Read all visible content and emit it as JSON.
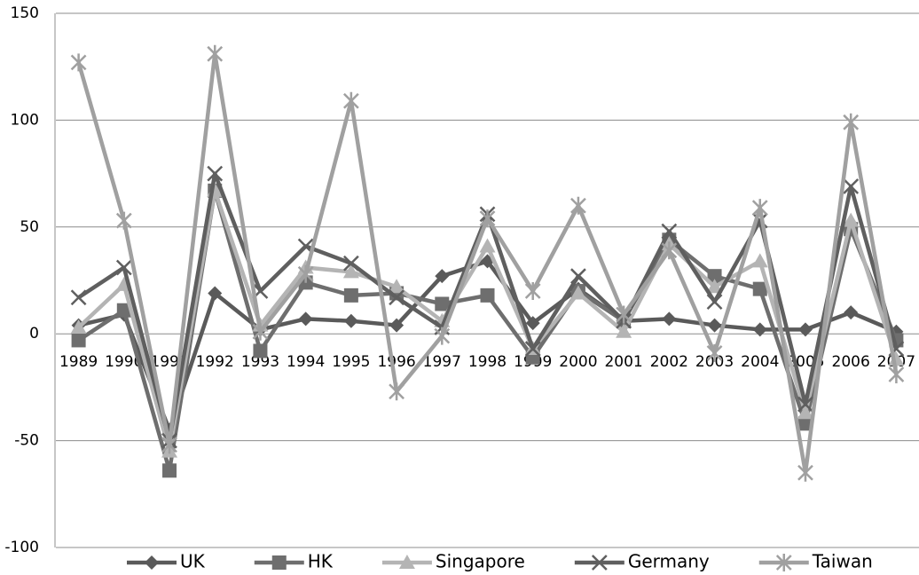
{
  "chart_data": {
    "type": "line",
    "categories": [
      "1989",
      "1990",
      "1991",
      "1992",
      "1993",
      "1994",
      "1995",
      "1996",
      "1997",
      "1998",
      "1999",
      "2000",
      "2001",
      "2002",
      "2003",
      "2004",
      "2005",
      "2006",
      "2007"
    ],
    "series": [
      {
        "name": "UK",
        "color": "#5a5a5a",
        "marker": "diamond",
        "values": [
          4,
          9,
          -45,
          19,
          2,
          7,
          6,
          4,
          27,
          34,
          5,
          21,
          6,
          7,
          4,
          2,
          2,
          10,
          1
        ]
      },
      {
        "name": "HK",
        "color": "#6e6e6e",
        "marker": "square",
        "values": [
          -3,
          11,
          -64,
          67,
          -8,
          24,
          18,
          19,
          14,
          18,
          -11,
          20,
          6,
          44,
          27,
          21,
          -42,
          49,
          -3
        ]
      },
      {
        "name": "Singapore",
        "color": "#b4b4b4",
        "marker": "triangle",
        "values": [
          3,
          23,
          -55,
          67,
          4,
          31,
          29,
          22,
          6,
          41,
          -7,
          19,
          1,
          42,
          22,
          34,
          -37,
          53,
          -12
        ]
      },
      {
        "name": "Germany",
        "color": "#5f5f5f",
        "marker": "x",
        "values": [
          17,
          31,
          -50,
          75,
          20,
          41,
          33,
          17,
          3,
          56,
          -7,
          27,
          6,
          48,
          15,
          53,
          -33,
          69,
          -7
        ]
      },
      {
        "name": "Taiwan",
        "color": "#a0a0a0",
        "marker": "star",
        "values": [
          127,
          53,
          -52,
          131,
          1,
          28,
          109,
          -27,
          -1,
          54,
          20,
          60,
          9,
          39,
          -9,
          59,
          -65,
          99,
          -19
        ]
      }
    ],
    "ylim": [
      -100,
      150
    ],
    "yticks": [
      -100,
      -50,
      0,
      50,
      100,
      150
    ],
    "grid": true,
    "legend": "bottom"
  }
}
